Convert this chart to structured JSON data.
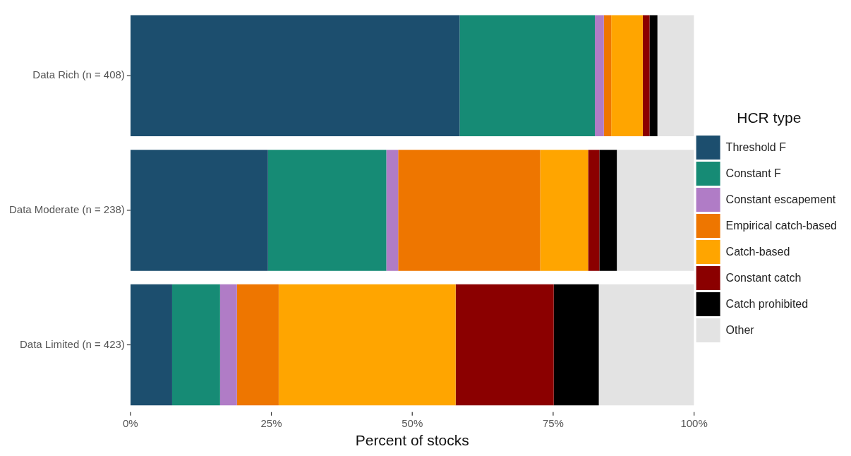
{
  "chart_data": {
    "type": "bar",
    "orientation": "horizontal",
    "stacked": true,
    "categories": [
      "Data Rich (n = 408)",
      "Data Moderate (n = 238)",
      "Data Limited (n = 423)"
    ],
    "series": [
      {
        "name": "Threshold F",
        "color": "#1c4e6e",
        "values": [
          58.4,
          24.4,
          7.4
        ]
      },
      {
        "name": "Constant F",
        "color": "#168b75",
        "values": [
          24.0,
          21.0,
          8.5
        ]
      },
      {
        "name": "Constant escapement",
        "color": "#b07cc6",
        "values": [
          1.6,
          2.1,
          3.0
        ]
      },
      {
        "name": "Empirical catch-based",
        "color": "#ee7600",
        "values": [
          1.3,
          25.2,
          7.4
        ]
      },
      {
        "name": "Catch-based",
        "color": "#ffa500",
        "values": [
          5.6,
          8.5,
          31.4
        ]
      },
      {
        "name": "Constant catch",
        "color": "#8b0000",
        "values": [
          1.2,
          2.0,
          17.4
        ]
      },
      {
        "name": "Catch prohibited",
        "color": "#000000",
        "values": [
          1.4,
          3.1,
          8.0
        ]
      },
      {
        "name": "Other",
        "color": "#e3e3e3",
        "values": [
          6.5,
          13.7,
          16.9
        ]
      }
    ],
    "xlabel": "Percent of stocks",
    "legend_title": "HCR type",
    "legend": "right",
    "grid": false,
    "xlim": [
      0,
      100
    ],
    "xticks": [
      {
        "value": 0,
        "label": "0%"
      },
      {
        "value": 25,
        "label": "25%"
      },
      {
        "value": 50,
        "label": "50%"
      },
      {
        "value": 75,
        "label": "75%"
      },
      {
        "value": 100,
        "label": "100%"
      }
    ]
  }
}
